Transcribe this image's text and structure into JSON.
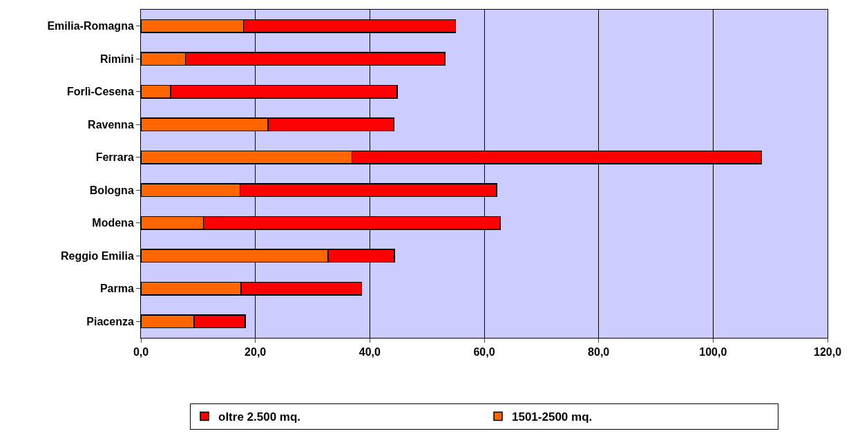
{
  "chart_data": {
    "type": "bar",
    "orientation": "horizontal",
    "stacked": true,
    "categories": [
      "Emilia-Romagna",
      "Rimini",
      "Forlì-Cesena",
      "Ravenna",
      "Ferrara",
      "Bologna",
      "Modena",
      "Reggio Emilia",
      "Parma",
      "Piacenza"
    ],
    "series": [
      {
        "name": "1501-2500 mq.",
        "color": "#ff6600",
        "values": [
          17.9,
          7.8,
          5.2,
          22.2,
          36.9,
          17.3,
          10.9,
          32.7,
          17.5,
          9.3
        ]
      },
      {
        "name": "oltre 2.500 mq.",
        "color": "#ff0000",
        "values": [
          37.1,
          45.3,
          39.6,
          22.0,
          71.6,
          44.9,
          51.9,
          11.6,
          21.1,
          8.9
        ]
      }
    ],
    "xlim": [
      0,
      120
    ],
    "xticks": [
      {
        "value": 0,
        "label": "0,0"
      },
      {
        "value": 20,
        "label": "20,0"
      },
      {
        "value": 40,
        "label": "40,0"
      },
      {
        "value": 60,
        "label": "60,0"
      },
      {
        "value": 80,
        "label": "80,0"
      },
      {
        "value": 100,
        "label": "100,0"
      },
      {
        "value": 120,
        "label": "120,0"
      }
    ],
    "grid": "x",
    "legend": "bottom"
  }
}
